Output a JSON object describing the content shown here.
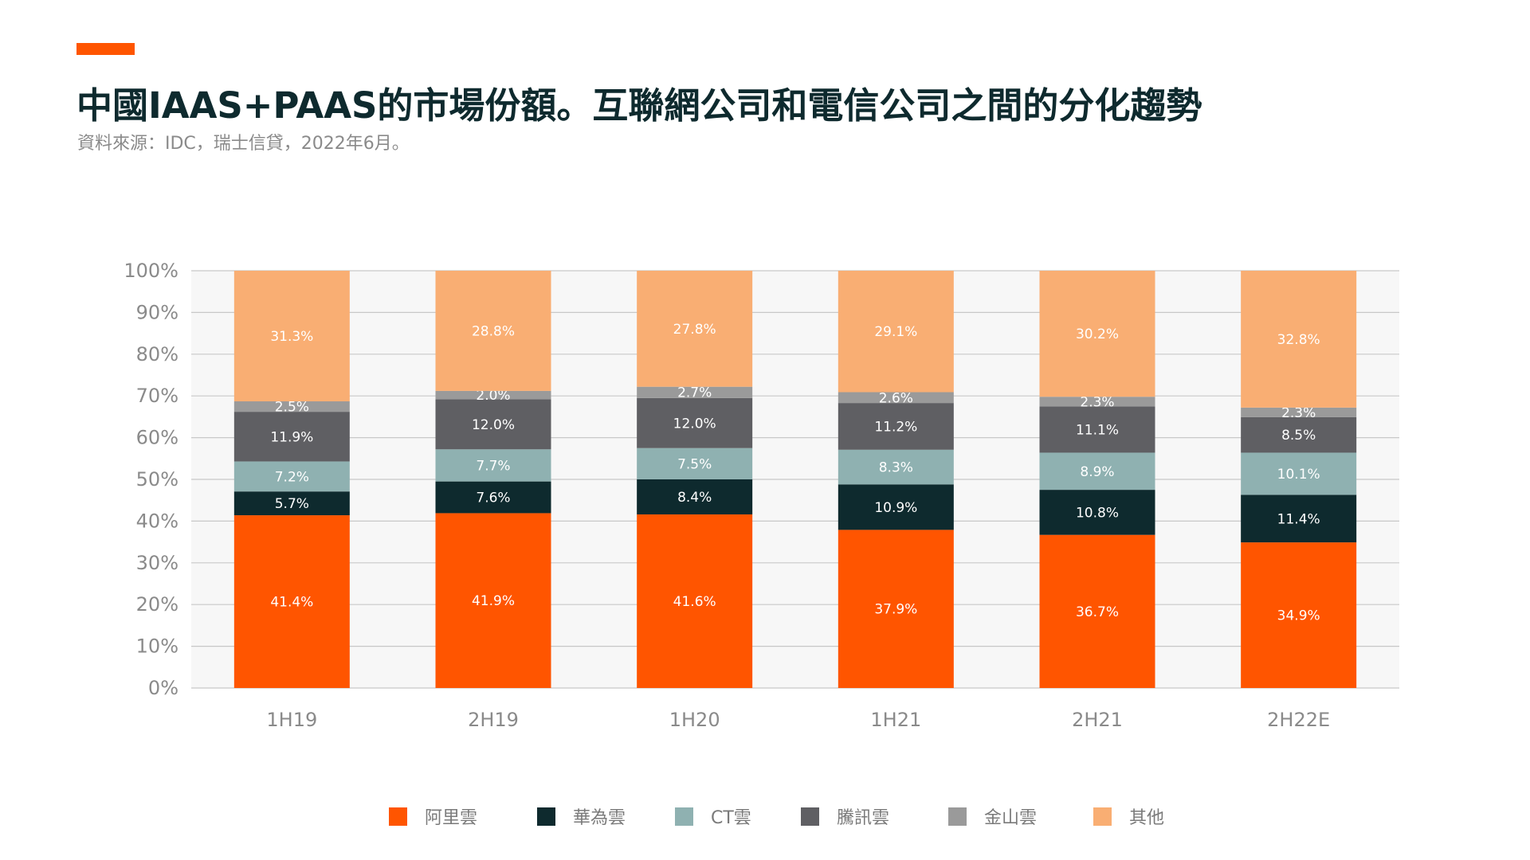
{
  "header": {
    "title": "中國IAAS+PAAS的市場份額。互聯網公司和電信公司之間的分化趨勢",
    "source": "資料來源：IDC，瑞士信貸，2022年6月。"
  },
  "colors": {
    "accent": "#FF5500",
    "title": "#0E2A2E"
  },
  "chart_data": {
    "type": "bar",
    "stacked": true,
    "percent": true,
    "categories": [
      "1H19",
      "2H19",
      "1H20",
      "1H21",
      "2H21",
      "2H22E"
    ],
    "y_ticks": [
      "0%",
      "10%",
      "20%",
      "30%",
      "40%",
      "50%",
      "60%",
      "70%",
      "80%",
      "90%",
      "100%"
    ],
    "ylim": [
      0,
      100
    ],
    "grid": true,
    "legend_position": "bottom",
    "series": [
      {
        "name": "阿里雲",
        "color": "#FF5500",
        "text_color": "#ffffff",
        "values": [
          41.4,
          41.9,
          41.6,
          37.9,
          36.7,
          34.9
        ],
        "labels": [
          "41.4%",
          "41.9%",
          "41.6%",
          "37.9%",
          "36.7%",
          "34.9%"
        ]
      },
      {
        "name": "華為雲",
        "color": "#0E2A2E",
        "text_color": "#ffffff",
        "values": [
          5.7,
          7.6,
          8.4,
          10.9,
          10.8,
          11.4
        ],
        "labels": [
          "5.7%",
          "7.6%",
          "8.4%",
          "10.9%",
          "10.8%",
          "11.4%"
        ]
      },
      {
        "name": "CT雲",
        "color": "#8FB1B1",
        "text_color": "#ffffff",
        "values": [
          7.2,
          7.7,
          7.5,
          8.3,
          8.9,
          10.1
        ],
        "labels": [
          "7.2%",
          "7.7%",
          "7.5%",
          "8.3%",
          "8.9%",
          "10.1%"
        ]
      },
      {
        "name": "騰訊雲",
        "color": "#5F5F63",
        "text_color": "#ffffff",
        "values": [
          11.9,
          12.0,
          12.0,
          11.2,
          11.1,
          8.5
        ],
        "labels": [
          "11.9%",
          "12.0%",
          "12.0%",
          "11.2%",
          "11.1%",
          "8.5%"
        ]
      },
      {
        "name": "金山雲",
        "color": "#9A9A9A",
        "text_color": "#ffffff",
        "values": [
          2.5,
          2.0,
          2.7,
          2.6,
          2.3,
          2.3
        ],
        "labels": [
          "2.5%",
          "2.0%",
          "2.7%",
          "2.6%",
          "2.3%",
          "2.3%"
        ]
      },
      {
        "name": "其他",
        "color": "#F9AE73",
        "text_color": "#ffffff",
        "values": [
          31.3,
          28.8,
          27.8,
          29.1,
          30.2,
          32.8
        ],
        "labels": [
          "31.3%",
          "28.8%",
          "27.8%",
          "29.1%",
          "30.2%",
          "32.8%"
        ]
      }
    ]
  }
}
